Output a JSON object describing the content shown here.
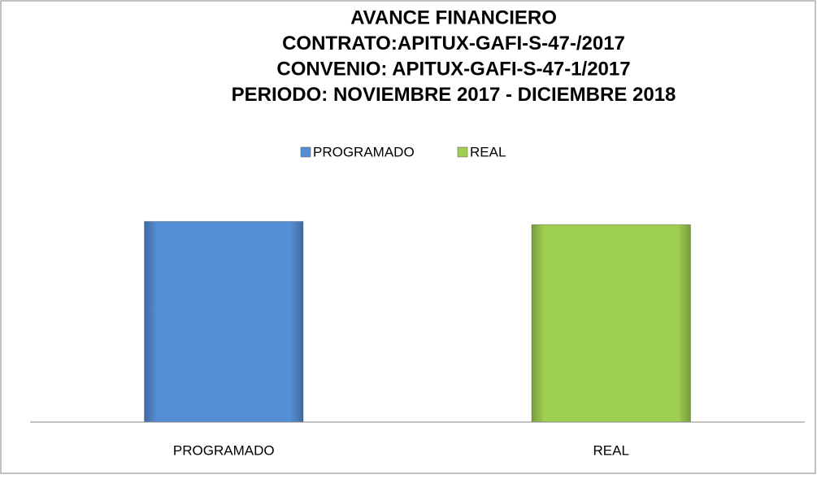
{
  "chart_data": {
    "type": "bar",
    "title": [
      "AVANCE FINANCIERO",
      "CONTRATO:APITUX-GAFI-S-47-/2017",
      "CONVENIO:  APITUX-GAFI-S-47-1/2017",
      "PERIODO: NOVIEMBRE 2017 - DICIEMBRE 2018"
    ],
    "categories": [
      "PROGRAMADO",
      "REAL"
    ],
    "values": [
      100,
      98.4
    ],
    "colors": [
      "#558ed5",
      "#9fcf52"
    ],
    "ylim": [
      0,
      120
    ],
    "legend": "top"
  }
}
